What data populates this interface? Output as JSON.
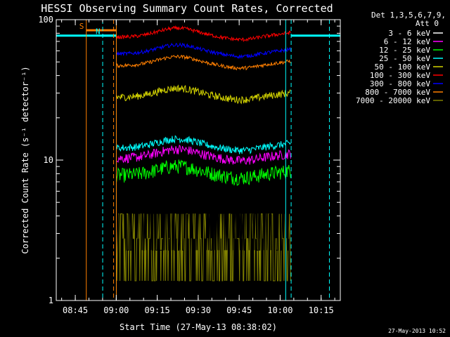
{
  "chart_data": {
    "type": "line",
    "title": "HESSI Observing Summary Count Rates, Corrected",
    "xlabel": "Start Time (27-May-13 08:38:02)",
    "ylabel": "Corrected Count Rate (s⁻¹ detector⁻¹)",
    "yscale": "log",
    "ylim": [
      1,
      100
    ],
    "xlim_minutes": [
      0,
      104
    ],
    "x_tick_labels": [
      "08:45",
      "09:00",
      "09:15",
      "09:30",
      "09:45",
      "10:00",
      "10:15"
    ],
    "y_tick_labels": [
      "1",
      "10",
      "100"
    ],
    "legend_header": [
      "Det 1,3,5,6,7,9,",
      "Att 0"
    ],
    "legend_position": "top-right, outside plot",
    "series": [
      {
        "name": "3 - 6 keV",
        "color": "#000000",
        "level": 3.8,
        "noise": 0.45
      },
      {
        "name": "6 - 12 keV",
        "color": "#ff00ff",
        "level": 10.3,
        "noise": 0.08
      },
      {
        "name": "12 - 25 keV",
        "color": "#00ff00",
        "level": 7.8,
        "noise": 0.12
      },
      {
        "name": "25 - 50 keV",
        "color": "#00ffff",
        "level": 12.2,
        "noise": 0.06
      },
      {
        "name": "50 - 100 keV",
        "color": "#d4d400",
        "level": 28,
        "noise": 0.06
      },
      {
        "name": "100 - 300 keV",
        "color": "#ff0000",
        "level": 75,
        "noise": 0.03
      },
      {
        "name": "300 - 800 keV",
        "color": "#0000ff",
        "level": 57,
        "noise": 0.03
      },
      {
        "name": "800 - 7000 keV",
        "color": "#ff7f00",
        "level": 47,
        "noise": 0.03
      },
      {
        "name": "7000 - 20000 keV",
        "color": "#808000",
        "level": 2.3,
        "noise": 0.45
      }
    ],
    "data_interval_minutes": [
      22,
      86
    ],
    "cyan_baseline_value": 77,
    "saa_markers": [
      {
        "label": "S",
        "color": "#ff7f00",
        "start_min": 11,
        "end_min": 22,
        "level": 84
      },
      {
        "label": "N",
        "color": "#00ffff",
        "start_min": 17,
        "end_min": 22,
        "level": 77
      }
    ],
    "vertical_markers_minutes": [
      {
        "min": 11,
        "color": "#ff7f00",
        "style": "solid"
      },
      {
        "min": 17,
        "color": "#00ffff",
        "style": "dashed"
      },
      {
        "min": 21,
        "color": "#ff7f00",
        "style": "dashed"
      },
      {
        "min": 22,
        "color": "#00ffff",
        "style": "solid"
      },
      {
        "min": 22,
        "color": "#ff7f00",
        "style": "solid"
      },
      {
        "min": 84,
        "color": "#00ffff",
        "style": "solid"
      },
      {
        "min": 86,
        "color": "#00ffff",
        "style": "dashed"
      },
      {
        "min": 100,
        "color": "#00ffff",
        "style": "dashed"
      }
    ]
  },
  "footer": {
    "timestamp": "27-May-2013 10:52"
  }
}
